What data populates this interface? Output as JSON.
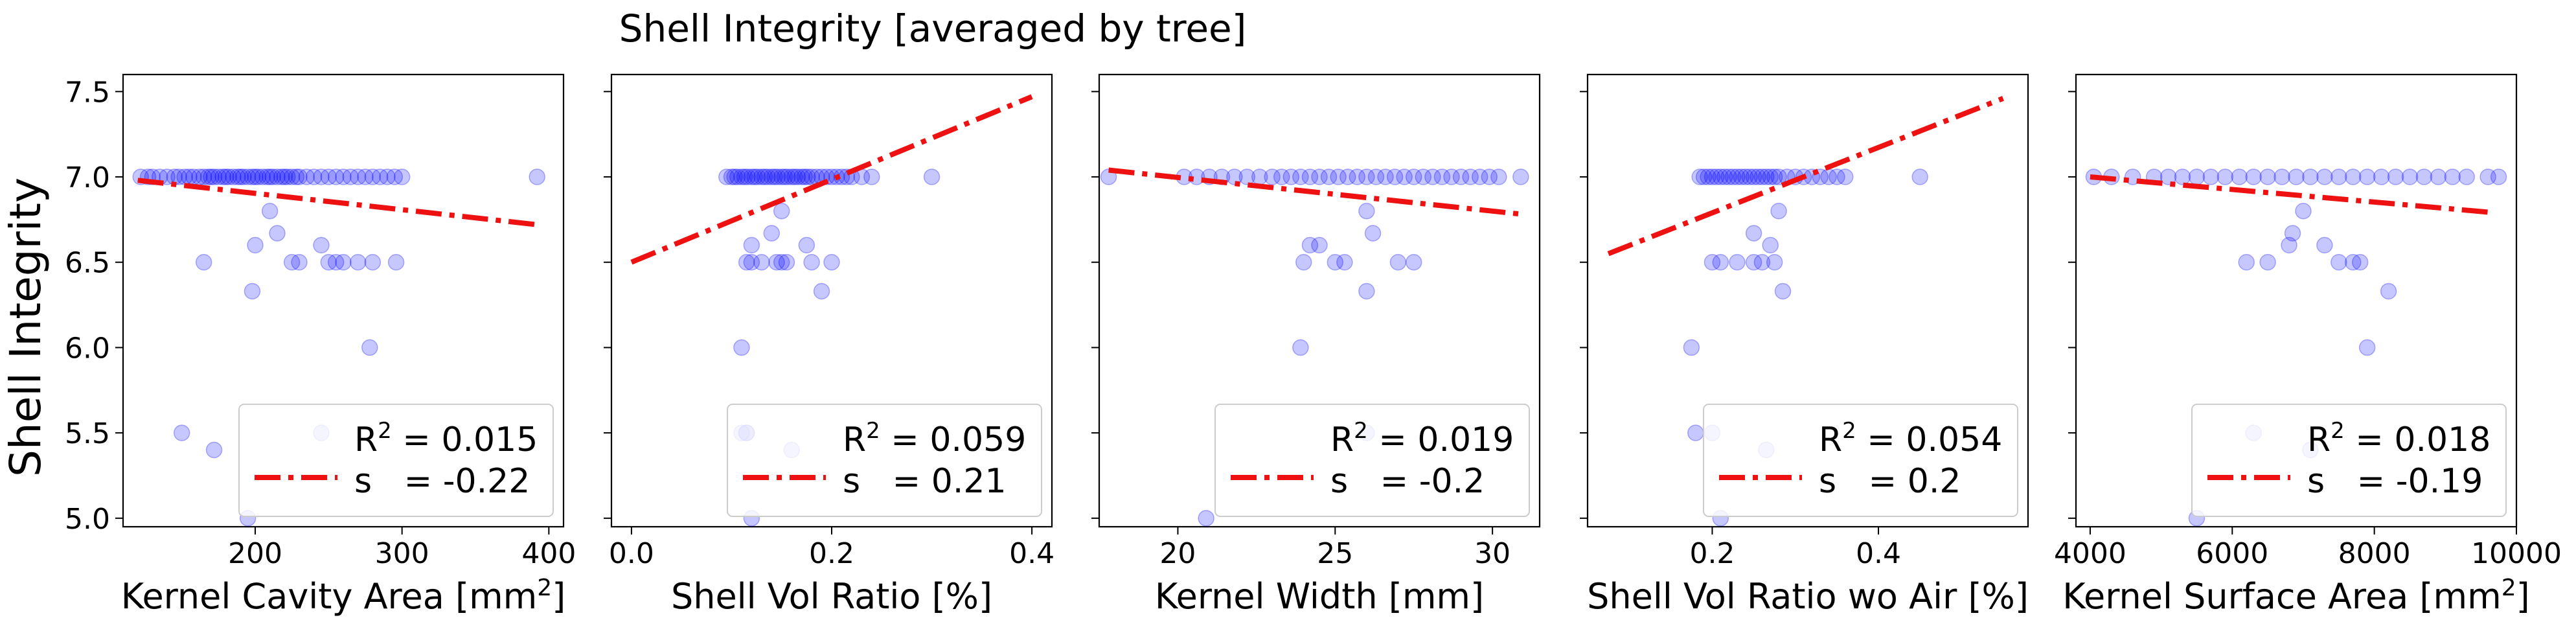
{
  "figure": {
    "title": "Shell Integrity [averaged by tree]",
    "ylabel": "Shell Integrity"
  },
  "chart_data": [
    {
      "type": "scatter",
      "xlabel": "Kernel Cavity Area [mm²]",
      "xlabel_parts": {
        "pre": "Kernel Cavity Area [mm",
        "sup": "2",
        "post": "]"
      },
      "xlim": [
        110,
        410
      ],
      "ylim": [
        4.95,
        7.6
      ],
      "xticks": [
        200,
        300,
        400
      ],
      "yticks": [
        5.0,
        5.5,
        6.0,
        6.5,
        7.0,
        7.5
      ],
      "legend": {
        "r2_label": "= 0.015",
        "s_label": "s   = -0.22",
        "placement": "lower-right"
      },
      "fit": {
        "x": [
          120,
          392
        ],
        "y": [
          6.98,
          6.72
        ]
      },
      "points": {
        "x": [
          122,
          127,
          130,
          135,
          140,
          145,
          148,
          152,
          155,
          158,
          162,
          165,
          168,
          170,
          172,
          175,
          178,
          180,
          182,
          185,
          188,
          190,
          192,
          195,
          198,
          200,
          202,
          205,
          208,
          210,
          212,
          215,
          218,
          220,
          222,
          225,
          228,
          230,
          235,
          240,
          245,
          250,
          255,
          260,
          265,
          270,
          275,
          280,
          285,
          290,
          295,
          300,
          392,
          210,
          215,
          200,
          198,
          165,
          225,
          230,
          245,
          250,
          255,
          260,
          270,
          280,
          296,
          278,
          150,
          172,
          195,
          245
        ],
        "y": [
          7.0,
          7.0,
          7.0,
          7.0,
          7.0,
          7.0,
          7.0,
          7.0,
          7.0,
          7.0,
          7.0,
          7.0,
          7.0,
          7.0,
          7.0,
          7.0,
          7.0,
          7.0,
          7.0,
          7.0,
          7.0,
          7.0,
          7.0,
          7.0,
          7.0,
          7.0,
          7.0,
          7.0,
          7.0,
          7.0,
          7.0,
          7.0,
          7.0,
          7.0,
          7.0,
          7.0,
          7.0,
          7.0,
          7.0,
          7.0,
          7.0,
          7.0,
          7.0,
          7.0,
          7.0,
          7.0,
          7.0,
          7.0,
          7.0,
          7.0,
          7.0,
          7.0,
          7.0,
          6.8,
          6.67,
          6.6,
          6.33,
          6.5,
          6.5,
          6.5,
          6.6,
          6.5,
          6.5,
          6.5,
          6.5,
          6.5,
          6.5,
          6.0,
          5.5,
          5.4,
          5.0,
          5.5
        ]
      }
    },
    {
      "type": "scatter",
      "xlabel": "Shell Vol Ratio [%]",
      "xlim": [
        -0.02,
        0.42
      ],
      "ylim": [
        4.95,
        7.6
      ],
      "xticks": [
        0.0,
        0.2,
        0.4
      ],
      "yticks": [
        5.0,
        5.5,
        6.0,
        6.5,
        7.0,
        7.5
      ],
      "legend": {
        "r2_label": "= 0.059",
        "s_label": "s   = 0.21",
        "placement": "lower-right"
      },
      "fit": {
        "x": [
          0.0,
          0.4
        ],
        "y": [
          6.5,
          7.47
        ]
      },
      "points": {
        "x": [
          0.095,
          0.1,
          0.103,
          0.106,
          0.11,
          0.113,
          0.116,
          0.12,
          0.123,
          0.126,
          0.13,
          0.133,
          0.136,
          0.14,
          0.143,
          0.146,
          0.15,
          0.153,
          0.156,
          0.16,
          0.163,
          0.166,
          0.17,
          0.173,
          0.176,
          0.18,
          0.185,
          0.19,
          0.195,
          0.2,
          0.205,
          0.21,
          0.215,
          0.22,
          0.23,
          0.24,
          0.3,
          0.15,
          0.14,
          0.12,
          0.145,
          0.19,
          0.115,
          0.12,
          0.13,
          0.15,
          0.155,
          0.175,
          0.2,
          0.18,
          0.11,
          0.11,
          0.115,
          0.115,
          0.16,
          0.12
        ],
        "y": [
          7.0,
          7.0,
          7.0,
          7.0,
          7.0,
          7.0,
          7.0,
          7.0,
          7.0,
          7.0,
          7.0,
          7.0,
          7.0,
          7.0,
          7.0,
          7.0,
          7.0,
          7.0,
          7.0,
          7.0,
          7.0,
          7.0,
          7.0,
          7.0,
          7.0,
          7.0,
          7.0,
          7.0,
          7.0,
          7.0,
          7.0,
          7.0,
          7.0,
          7.0,
          7.0,
          7.0,
          7.0,
          6.8,
          6.67,
          6.6,
          6.5,
          6.33,
          6.5,
          6.5,
          6.5,
          6.5,
          6.5,
          6.6,
          6.5,
          6.5,
          6.0,
          5.5,
          5.5,
          5.5,
          5.4,
          5.0
        ]
      }
    },
    {
      "type": "scatter",
      "xlabel": "Kernel Width [mm]",
      "xlim": [
        17.5,
        31.5
      ],
      "ylim": [
        4.95,
        7.6
      ],
      "xticks": [
        20,
        25,
        30
      ],
      "yticks": [
        5.0,
        5.5,
        6.0,
        6.5,
        7.0,
        7.5
      ],
      "legend": {
        "r2_label": "= 0.019",
        "s_label": "s   = -0.2",
        "placement": "lower-right"
      },
      "fit": {
        "x": [
          17.8,
          31.0
        ],
        "y": [
          7.04,
          6.78
        ]
      },
      "points": {
        "x": [
          17.8,
          20.2,
          20.6,
          21.0,
          21.4,
          21.8,
          22.2,
          22.6,
          23.0,
          23.3,
          23.6,
          23.9,
          24.2,
          24.5,
          24.8,
          25.1,
          25.4,
          25.7,
          26.0,
          26.3,
          26.6,
          26.9,
          27.2,
          27.5,
          27.8,
          28.1,
          28.4,
          28.7,
          29.0,
          29.3,
          29.6,
          29.9,
          30.2,
          30.9,
          26.0,
          26.2,
          24.2,
          24.5,
          25.0,
          25.3,
          24.0,
          27.0,
          27.5,
          26.0,
          23.9,
          26.0,
          20.9
        ],
        "y": [
          7.0,
          7.0,
          7.0,
          7.0,
          7.0,
          7.0,
          7.0,
          7.0,
          7.0,
          7.0,
          7.0,
          7.0,
          7.0,
          7.0,
          7.0,
          7.0,
          7.0,
          7.0,
          7.0,
          7.0,
          7.0,
          7.0,
          7.0,
          7.0,
          7.0,
          7.0,
          7.0,
          7.0,
          7.0,
          7.0,
          7.0,
          7.0,
          7.0,
          7.0,
          6.8,
          6.67,
          6.6,
          6.6,
          6.5,
          6.5,
          6.5,
          6.5,
          6.5,
          6.33,
          6.0,
          5.5,
          5.0
        ]
      }
    },
    {
      "type": "scatter",
      "xlabel": "Shell Vol Ratio wo Air [%]",
      "xlim": [
        0.05,
        0.58
      ],
      "ylim": [
        4.95,
        7.6
      ],
      "xticks": [
        0.2,
        0.4
      ],
      "yticks": [
        5.0,
        5.5,
        6.0,
        6.5,
        7.0,
        7.5
      ],
      "legend": {
        "r2_label": "= 0.054",
        "s_label": "s   = 0.2",
        "placement": "lower-right"
      },
      "fit": {
        "x": [
          0.075,
          0.55
        ],
        "y": [
          6.55,
          7.46
        ]
      },
      "points": {
        "x": [
          0.185,
          0.19,
          0.195,
          0.2,
          0.205,
          0.21,
          0.215,
          0.22,
          0.225,
          0.23,
          0.235,
          0.24,
          0.245,
          0.25,
          0.255,
          0.26,
          0.265,
          0.27,
          0.275,
          0.28,
          0.29,
          0.3,
          0.31,
          0.32,
          0.33,
          0.34,
          0.35,
          0.36,
          0.45,
          0.28,
          0.25,
          0.27,
          0.2,
          0.21,
          0.23,
          0.25,
          0.26,
          0.275,
          0.285,
          0.175,
          0.18,
          0.2,
          0.265,
          0.21
        ],
        "y": [
          7.0,
          7.0,
          7.0,
          7.0,
          7.0,
          7.0,
          7.0,
          7.0,
          7.0,
          7.0,
          7.0,
          7.0,
          7.0,
          7.0,
          7.0,
          7.0,
          7.0,
          7.0,
          7.0,
          7.0,
          7.0,
          7.0,
          7.0,
          7.0,
          7.0,
          7.0,
          7.0,
          7.0,
          7.0,
          6.8,
          6.67,
          6.6,
          6.5,
          6.5,
          6.5,
          6.5,
          6.5,
          6.5,
          6.33,
          6.0,
          5.5,
          5.5,
          5.4,
          5.0
        ]
      }
    },
    {
      "type": "scatter",
      "xlabel": "Kernel Surface Area [mm²]",
      "xlabel_parts": {
        "pre": "Kernel Surface Area [mm",
        "sup": "2",
        "post": "]"
      },
      "xlim": [
        3800,
        10000
      ],
      "ylim": [
        4.95,
        7.6
      ],
      "xticks": [
        4000,
        6000,
        8000,
        10000
      ],
      "yticks": [
        5.0,
        5.5,
        6.0,
        6.5,
        7.0,
        7.5
      ],
      "legend": {
        "r2_label": "= 0.018",
        "s_label": "s   = -0.19",
        "placement": "lower-right"
      },
      "fit": {
        "x": [
          4000,
          9700
        ],
        "y": [
          7.0,
          6.79
        ]
      },
      "points": {
        "x": [
          4050,
          4300,
          4600,
          4900,
          5100,
          5300,
          5500,
          5700,
          5900,
          6100,
          6300,
          6500,
          6700,
          6900,
          7100,
          7300,
          7500,
          7700,
          7900,
          8100,
          8300,
          8500,
          8700,
          8900,
          9100,
          9300,
          9600,
          9750,
          7000,
          6850,
          7300,
          6800,
          6200,
          6500,
          7500,
          7700,
          7800,
          8200,
          7900,
          6300,
          7100,
          5500
        ],
        "y": [
          7.0,
          7.0,
          7.0,
          7.0,
          7.0,
          7.0,
          7.0,
          7.0,
          7.0,
          7.0,
          7.0,
          7.0,
          7.0,
          7.0,
          7.0,
          7.0,
          7.0,
          7.0,
          7.0,
          7.0,
          7.0,
          7.0,
          7.0,
          7.0,
          7.0,
          7.0,
          7.0,
          7.0,
          6.8,
          6.67,
          6.6,
          6.6,
          6.5,
          6.5,
          6.5,
          6.5,
          6.5,
          6.33,
          6.0,
          5.5,
          5.4,
          5.0
        ]
      }
    }
  ],
  "colors": {
    "points": "#0000ff",
    "fit": "#ee1111",
    "axes": "#000000",
    "legend_border": "#cccccc"
  }
}
